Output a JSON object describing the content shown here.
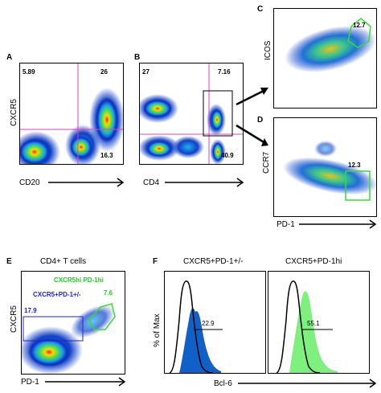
{
  "panels": {
    "A": {
      "letter": "A",
      "ylabel": "CXCR5",
      "xlabel": "CD20",
      "q_tl": "5.89",
      "q_tr": "26",
      "q_br": "16.3"
    },
    "B": {
      "letter": "B",
      "xlabel": "CD4",
      "q_tl": "27",
      "q_tr": "7.16",
      "q_br": "40.9"
    },
    "C": {
      "letter": "C",
      "ylabel": "ICOS",
      "gate": "12.7"
    },
    "D": {
      "letter": "D",
      "ylabel": "CCR7",
      "xlabel": "PD-1",
      "gate": "12.3"
    },
    "E": {
      "letter": "E",
      "title": "CD4+ T cells",
      "ylabel": "CXCR5",
      "xlabel": "PD-1",
      "gate_hi_label": "CXCR5hi PD-1hi",
      "gate_hi_value": "7.6",
      "gate_mid_label": "CXCR5+PD-1+/-",
      "gate_mid_value": "17.9"
    },
    "F": {
      "letter": "F",
      "title_left": "CXCR5+PD-1+/-",
      "title_right": "CXCR5+PD-1hi",
      "ylabel": "% of Max",
      "xlabel": "Bcl-6",
      "left_value": "22.9",
      "right_value": "55.1"
    }
  },
  "colors": {
    "quadrant_line": "#e040c0",
    "gate_green": "#33dd33",
    "hist_blue": "#1060c8",
    "hist_green": "#7ef07e",
    "label_green": "#22cc22",
    "label_blue": "#2222cc"
  }
}
